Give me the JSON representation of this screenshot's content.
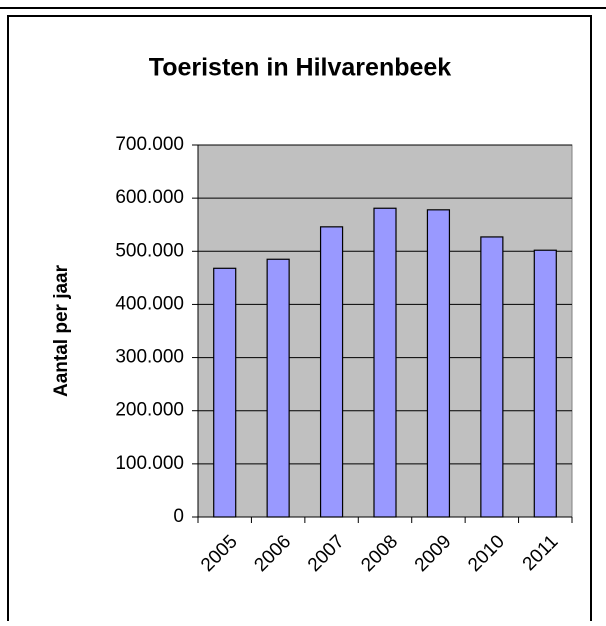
{
  "chart_data": {
    "type": "bar",
    "title": "Toeristen in Hilvarenbeek",
    "y_label": "Aantal per jaar",
    "categories": [
      "2005",
      "2006",
      "2007",
      "2008",
      "2009",
      "2010",
      "2011"
    ],
    "values": [
      468000,
      485000,
      546000,
      581000,
      578000,
      527000,
      502000
    ],
    "color": "#9999ff",
    "plot_background": "#c0c0c0",
    "ylim": [
      0,
      700000
    ],
    "yticks": [
      0,
      {
        "value": 100000,
        "label": "100.000"
      },
      {
        "value": 200000,
        "label": "200.000"
      },
      {
        "value": 300000,
        "label": "300.000"
      },
      {
        "value": 400000,
        "label": "400.000"
      },
      {
        "value": 500000,
        "label": "500.000"
      },
      {
        "value": 600000,
        "label": "600.000"
      },
      {
        "value": 700000,
        "label": "700.000"
      }
    ],
    "grid": true
  }
}
